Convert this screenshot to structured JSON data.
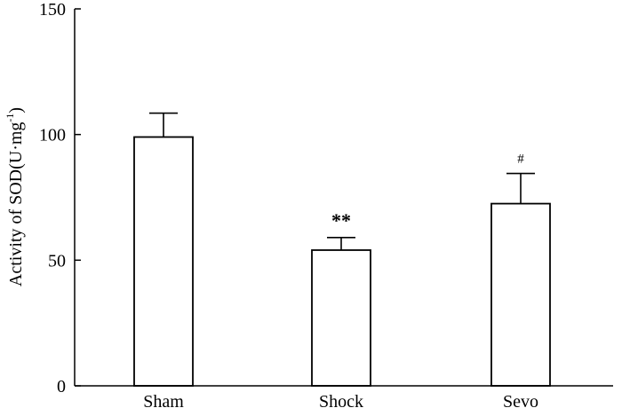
{
  "chart_data": {
    "type": "bar",
    "categories": [
      "Sham",
      "Shock",
      "Sevo"
    ],
    "values": [
      99,
      54,
      72.5
    ],
    "errors": [
      9.5,
      5,
      12
    ],
    "annotations": [
      "",
      "**",
      "#"
    ],
    "ylabel": {
      "text": "Activity of SOD(U·mg",
      "superscript": "-1",
      "suffix": ")"
    },
    "ylim": [
      0,
      150
    ],
    "yticks": [
      0,
      50,
      100,
      150
    ],
    "grid": false,
    "bar_fill": "#ffffff",
    "bar_stroke": "#000000"
  }
}
